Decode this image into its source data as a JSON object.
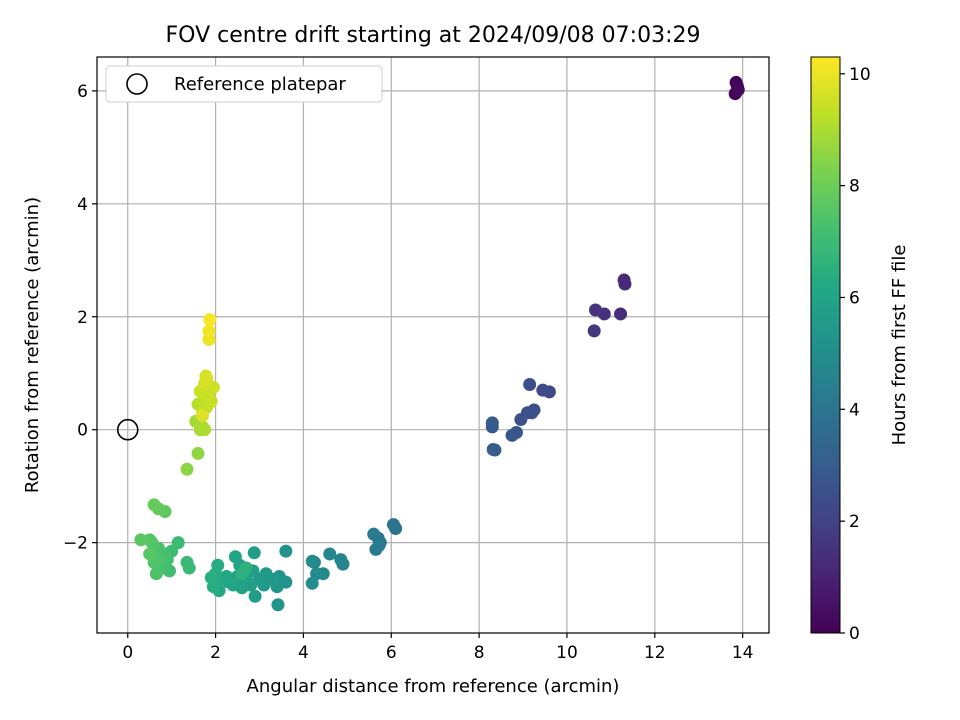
{
  "chart_data": {
    "type": "scatter",
    "title": "FOV centre drift starting at 2024/09/08 07:03:29",
    "xlabel": "Angular distance from reference (arcmin)",
    "ylabel": "Rotation from reference (arcmin)",
    "xlim": [
      -0.7,
      14.6
    ],
    "ylim": [
      -3.6,
      6.6
    ],
    "xticks": [
      0,
      2,
      4,
      6,
      8,
      10,
      12,
      14
    ],
    "xtick_labels": [
      "0",
      "2",
      "4",
      "6",
      "8",
      "10",
      "12",
      "14"
    ],
    "yticks": [
      -2,
      0,
      2,
      4,
      6
    ],
    "ytick_labels": [
      "−2",
      "0",
      "2",
      "4",
      "6"
    ],
    "grid": true,
    "legend": {
      "position": "top-left",
      "entries": [
        {
          "label": "Reference platepar",
          "marker": "open-circle"
        }
      ]
    },
    "reference_point": {
      "x": 0,
      "y": 0
    },
    "colorbar": {
      "label": "Hours from first FF file",
      "colormap": "viridis",
      "range": [
        0,
        10.3
      ],
      "ticks": [
        0,
        2,
        4,
        6,
        8,
        10
      ],
      "tick_labels": [
        "0",
        "2",
        "4",
        "6",
        "8",
        "10"
      ]
    },
    "points": [
      {
        "x": 13.85,
        "y": 6.15,
        "c": 0.05
      },
      {
        "x": 13.88,
        "y": 6.08,
        "c": 0.1
      },
      {
        "x": 13.83,
        "y": 5.95,
        "c": 0.15
      },
      {
        "x": 13.9,
        "y": 6.02,
        "c": 0.2
      },
      {
        "x": 11.3,
        "y": 2.65,
        "c": 1.2
      },
      {
        "x": 11.32,
        "y": 2.58,
        "c": 1.25
      },
      {
        "x": 11.22,
        "y": 2.05,
        "c": 1.35
      },
      {
        "x": 10.85,
        "y": 2.05,
        "c": 1.45
      },
      {
        "x": 10.65,
        "y": 2.12,
        "c": 1.5
      },
      {
        "x": 10.62,
        "y": 1.75,
        "c": 1.6
      },
      {
        "x": 9.6,
        "y": 0.67,
        "c": 2.3
      },
      {
        "x": 9.45,
        "y": 0.7,
        "c": 2.35
      },
      {
        "x": 9.25,
        "y": 0.35,
        "c": 2.4
      },
      {
        "x": 9.15,
        "y": 0.8,
        "c": 2.45
      },
      {
        "x": 9.2,
        "y": 0.3,
        "c": 2.5
      },
      {
        "x": 9.1,
        "y": 0.3,
        "c": 2.55
      },
      {
        "x": 8.95,
        "y": 0.18,
        "c": 2.6
      },
      {
        "x": 8.85,
        "y": -0.05,
        "c": 2.7
      },
      {
        "x": 8.75,
        "y": -0.1,
        "c": 2.75
      },
      {
        "x": 8.3,
        "y": 0.12,
        "c": 2.85
      },
      {
        "x": 8.3,
        "y": 0.05,
        "c": 2.9
      },
      {
        "x": 8.32,
        "y": -0.35,
        "c": 2.95
      },
      {
        "x": 8.36,
        "y": -0.36,
        "c": 3.0
      },
      {
        "x": 6.1,
        "y": -1.75,
        "c": 3.9
      },
      {
        "x": 6.05,
        "y": -1.68,
        "c": 3.95
      },
      {
        "x": 5.7,
        "y": -1.92,
        "c": 4.05
      },
      {
        "x": 5.75,
        "y": -2.0,
        "c": 4.1
      },
      {
        "x": 5.6,
        "y": -1.85,
        "c": 4.15
      },
      {
        "x": 5.65,
        "y": -2.12,
        "c": 4.2
      },
      {
        "x": 5.72,
        "y": -2.05,
        "c": 4.25
      },
      {
        "x": 4.9,
        "y": -2.38,
        "c": 4.6
      },
      {
        "x": 4.85,
        "y": -2.3,
        "c": 4.65
      },
      {
        "x": 4.6,
        "y": -2.2,
        "c": 4.7
      },
      {
        "x": 4.45,
        "y": -2.55,
        "c": 4.75
      },
      {
        "x": 4.25,
        "y": -2.35,
        "c": 4.8
      },
      {
        "x": 4.2,
        "y": -2.33,
        "c": 4.85
      },
      {
        "x": 4.3,
        "y": -2.55,
        "c": 4.9
      },
      {
        "x": 4.2,
        "y": -2.72,
        "c": 4.95
      },
      {
        "x": 3.6,
        "y": -2.15,
        "c": 5.2
      },
      {
        "x": 3.6,
        "y": -2.7,
        "c": 5.25
      },
      {
        "x": 3.45,
        "y": -2.6,
        "c": 5.3
      },
      {
        "x": 3.42,
        "y": -3.1,
        "c": 5.35
      },
      {
        "x": 3.4,
        "y": -2.78,
        "c": 5.4
      },
      {
        "x": 3.3,
        "y": -2.65,
        "c": 5.45
      },
      {
        "x": 3.15,
        "y": -2.55,
        "c": 5.5
      },
      {
        "x": 3.1,
        "y": -2.75,
        "c": 5.55
      },
      {
        "x": 3.0,
        "y": -2.65,
        "c": 5.6
      },
      {
        "x": 2.9,
        "y": -2.95,
        "c": 5.65
      },
      {
        "x": 2.88,
        "y": -2.18,
        "c": 5.7
      },
      {
        "x": 2.85,
        "y": -2.5,
        "c": 5.72
      },
      {
        "x": 2.8,
        "y": -2.75,
        "c": 5.75
      },
      {
        "x": 2.7,
        "y": -2.65,
        "c": 5.8
      },
      {
        "x": 2.6,
        "y": -2.8,
        "c": 5.85
      },
      {
        "x": 2.55,
        "y": -2.4,
        "c": 5.9
      },
      {
        "x": 2.5,
        "y": -2.6,
        "c": 5.95
      },
      {
        "x": 2.45,
        "y": -2.25,
        "c": 6.0
      },
      {
        "x": 2.4,
        "y": -2.75,
        "c": 6.05
      },
      {
        "x": 2.3,
        "y": -2.7,
        "c": 6.1
      },
      {
        "x": 2.25,
        "y": -2.6,
        "c": 6.15
      },
      {
        "x": 2.1,
        "y": -2.65,
        "c": 6.2
      },
      {
        "x": 2.08,
        "y": -2.85,
        "c": 6.25
      },
      {
        "x": 2.05,
        "y": -2.4,
        "c": 6.3
      },
      {
        "x": 2.0,
        "y": -2.55,
        "c": 6.35
      },
      {
        "x": 1.95,
        "y": -2.78,
        "c": 6.4
      },
      {
        "x": 1.9,
        "y": -2.62,
        "c": 6.45
      },
      {
        "x": 2.6,
        "y": -2.55,
        "c": 6.5
      },
      {
        "x": 2.7,
        "y": -2.45,
        "c": 6.55
      },
      {
        "x": 1.4,
        "y": -2.45,
        "c": 6.9
      },
      {
        "x": 1.35,
        "y": -2.35,
        "c": 6.95
      },
      {
        "x": 1.15,
        "y": -2.0,
        "c": 7.0
      },
      {
        "x": 1.0,
        "y": -2.15,
        "c": 7.05
      },
      {
        "x": 0.95,
        "y": -2.5,
        "c": 7.1
      },
      {
        "x": 0.9,
        "y": -2.3,
        "c": 7.15
      },
      {
        "x": 0.85,
        "y": -2.2,
        "c": 7.2
      },
      {
        "x": 0.8,
        "y": -2.45,
        "c": 7.25
      },
      {
        "x": 0.75,
        "y": -2.3,
        "c": 7.3
      },
      {
        "x": 0.7,
        "y": -2.1,
        "c": 7.35
      },
      {
        "x": 0.65,
        "y": -2.55,
        "c": 7.4
      },
      {
        "x": 0.6,
        "y": -2.35,
        "c": 7.45
      },
      {
        "x": 0.55,
        "y": -2.0,
        "c": 7.5
      },
      {
        "x": 0.5,
        "y": -1.95,
        "c": 7.55
      },
      {
        "x": 0.5,
        "y": -2.2,
        "c": 7.6
      },
      {
        "x": 0.3,
        "y": -1.95,
        "c": 7.65
      },
      {
        "x": 0.85,
        "y": -1.45,
        "c": 7.75
      },
      {
        "x": 0.7,
        "y": -1.4,
        "c": 7.8
      },
      {
        "x": 0.6,
        "y": -1.33,
        "c": 7.85
      },
      {
        "x": 1.35,
        "y": -0.7,
        "c": 8.5
      },
      {
        "x": 1.6,
        "y": -0.42,
        "c": 8.6
      },
      {
        "x": 1.55,
        "y": 0.15,
        "c": 8.9
      },
      {
        "x": 1.65,
        "y": 0.0,
        "c": 8.95
      },
      {
        "x": 1.7,
        "y": 0.05,
        "c": 9.0
      },
      {
        "x": 1.75,
        "y": 0.0,
        "c": 9.05
      },
      {
        "x": 1.6,
        "y": 0.45,
        "c": 9.2
      },
      {
        "x": 1.7,
        "y": 0.35,
        "c": 9.25
      },
      {
        "x": 1.75,
        "y": 0.55,
        "c": 9.3
      },
      {
        "x": 1.8,
        "y": 0.4,
        "c": 9.35
      },
      {
        "x": 1.85,
        "y": 0.6,
        "c": 9.4
      },
      {
        "x": 1.9,
        "y": 0.5,
        "c": 9.45
      },
      {
        "x": 1.65,
        "y": 0.68,
        "c": 9.5
      },
      {
        "x": 1.95,
        "y": 0.75,
        "c": 9.55
      },
      {
        "x": 1.75,
        "y": 0.82,
        "c": 9.6
      },
      {
        "x": 1.78,
        "y": 0.95,
        "c": 9.65
      },
      {
        "x": 1.8,
        "y": 0.9,
        "c": 9.7
      },
      {
        "x": 1.7,
        "y": 0.25,
        "c": 9.75
      },
      {
        "x": 1.85,
        "y": 1.6,
        "c": 10.0
      },
      {
        "x": 1.85,
        "y": 1.75,
        "c": 10.1
      },
      {
        "x": 1.87,
        "y": 1.95,
        "c": 10.2
      }
    ]
  }
}
